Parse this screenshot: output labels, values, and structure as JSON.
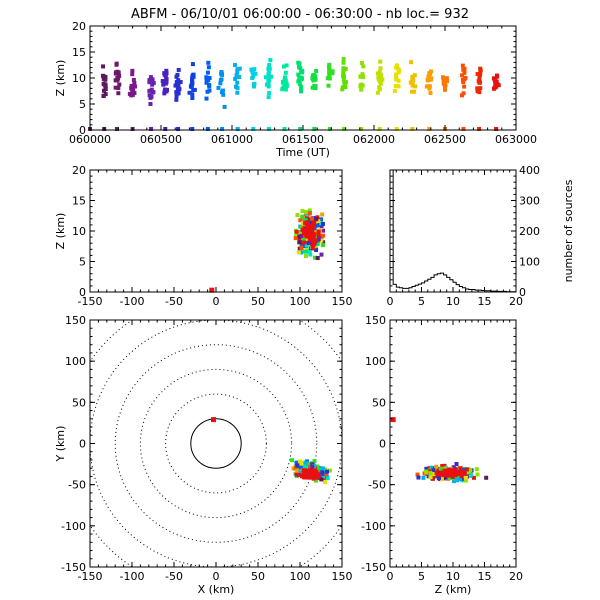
{
  "title": {
    "station": "ABFM",
    "date": "06/10/01",
    "time_range": "06:00:00 - 06:30:00",
    "count_label": "nb loc.=",
    "count": "932"
  },
  "chart_data": [
    {
      "id": "time-height",
      "type": "scatter",
      "xlabel": "Time (UT)",
      "ylabel": "Z (km)",
      "xticks": [
        "060000",
        "060500",
        "061000",
        "061500",
        "062000",
        "062500",
        "063000"
      ],
      "xlim": [
        0,
        30
      ],
      "ylim": [
        0,
        20
      ],
      "yticks": [
        0,
        5,
        10,
        15,
        20
      ],
      "colormap": "rainbow by time",
      "clusters": [
        {
          "x": 1.0,
          "z": 9.0,
          "color": "#5a1a5a"
        },
        {
          "x": 1.9,
          "z": 10.2,
          "color": "#6a1a6a"
        },
        {
          "x": 3.0,
          "z": 8.5,
          "color": "#7a1a8a"
        },
        {
          "x": 4.3,
          "z": 8.0,
          "color": "#6a20b0"
        },
        {
          "x": 5.3,
          "z": 8.6,
          "color": "#4a20c0"
        },
        {
          "x": 6.2,
          "z": 9.0,
          "color": "#2a30d0"
        },
        {
          "x": 7.2,
          "z": 9.2,
          "color": "#1040e0"
        },
        {
          "x": 8.3,
          "z": 9.6,
          "color": "#0060f0"
        },
        {
          "x": 9.3,
          "z": 9.0,
          "color": "#0090f0"
        },
        {
          "x": 10.4,
          "z": 9.8,
          "color": "#00b0e8"
        },
        {
          "x": 11.5,
          "z": 10.0,
          "color": "#00d0e0"
        },
        {
          "x": 12.6,
          "z": 10.2,
          "color": "#00e0c8"
        },
        {
          "x": 13.7,
          "z": 9.6,
          "color": "#00e8a0"
        },
        {
          "x": 14.8,
          "z": 10.4,
          "color": "#00e070"
        },
        {
          "x": 15.8,
          "z": 10.0,
          "color": "#10e040"
        },
        {
          "x": 16.9,
          "z": 10.0,
          "color": "#30e020"
        },
        {
          "x": 17.9,
          "z": 10.2,
          "color": "#60e000"
        },
        {
          "x": 19.1,
          "z": 9.8,
          "color": "#90e000"
        },
        {
          "x": 20.4,
          "z": 9.4,
          "color": "#c0e000"
        },
        {
          "x": 21.6,
          "z": 9.6,
          "color": "#e8e000"
        },
        {
          "x": 22.7,
          "z": 9.2,
          "color": "#f0c000"
        },
        {
          "x": 23.9,
          "z": 9.4,
          "color": "#f8a000"
        },
        {
          "x": 25.0,
          "z": 9.0,
          "color": "#f87800"
        },
        {
          "x": 26.3,
          "z": 9.6,
          "color": "#f85000"
        },
        {
          "x": 27.4,
          "z": 10.0,
          "color": "#f02800"
        },
        {
          "x": 28.6,
          "z": 9.2,
          "color": "#e81010"
        }
      ]
    },
    {
      "id": "x-z",
      "type": "scatter",
      "xlabel": "",
      "ylabel": "Z (km)",
      "xlim": [
        -150,
        150
      ],
      "ylim": [
        0,
        20
      ],
      "xticks": [
        -150,
        -100,
        -50,
        0,
        50,
        100,
        150
      ],
      "yticks": [
        0,
        5,
        10,
        15,
        20
      ],
      "marker_station": {
        "x": -5,
        "z": 0,
        "color": "#e81010"
      },
      "cluster": {
        "x_center": 112,
        "x_spread": 14,
        "z_center": 9.8,
        "z_spread": 2.6
      }
    },
    {
      "id": "histogram",
      "type": "bar",
      "xlabel": "",
      "ylabel": "number of sources",
      "xlim": [
        0,
        20
      ],
      "ylim": [
        0,
        400
      ],
      "xticks": [
        0,
        5,
        10,
        15,
        20
      ],
      "yticks": [
        0,
        100,
        200,
        300,
        400
      ],
      "bin_width": 0.5,
      "counts": [
        400,
        25,
        16,
        14,
        12,
        12,
        14,
        18,
        22,
        26,
        30,
        36,
        42,
        48,
        56,
        60,
        62,
        56,
        48,
        40,
        32,
        24,
        18,
        14,
        10,
        8,
        8,
        6,
        6,
        5,
        4,
        4,
        3,
        3,
        2,
        2,
        2,
        1,
        1,
        1
      ]
    },
    {
      "id": "x-y",
      "type": "scatter",
      "xlabel": "X (km)",
      "ylabel": "Y (km)",
      "xlim": [
        -150,
        150
      ],
      "ylim": [
        -150,
        150
      ],
      "xticks": [
        -150,
        -100,
        -50,
        0,
        50,
        100,
        150
      ],
      "yticks": [
        -150,
        -100,
        -50,
        0,
        50,
        100,
        150
      ],
      "range_rings_km": [
        30,
        60,
        90,
        120,
        150,
        180
      ],
      "station": {
        "x": -3,
        "y": 29,
        "color": "#e81010"
      },
      "cluster": {
        "x_center": 112,
        "x_spread": 18,
        "y_center": -33,
        "y_spread": 9
      }
    },
    {
      "id": "z-y",
      "type": "scatter",
      "xlabel": "Z (km)",
      "ylabel": "",
      "xlim": [
        0,
        20
      ],
      "ylim": [
        -150,
        150
      ],
      "xticks": [
        0,
        5,
        10,
        15,
        20
      ],
      "yticks": [
        -150,
        -100,
        -50,
        0,
        50,
        100,
        150
      ],
      "station": {
        "z": 0.5,
        "y": 29,
        "color": "#e81010"
      },
      "cluster": {
        "z_center": 9.5,
        "z_spread": 3,
        "y_center": -36,
        "y_spread": 8
      }
    }
  ],
  "colors": {
    "axis": "#000000",
    "background": "#ffffff",
    "palette": [
      "#5a1a5a",
      "#6a20b0",
      "#2a30d0",
      "#0060f0",
      "#00b0e8",
      "#00e0c8",
      "#00e070",
      "#30e020",
      "#90e000",
      "#e8e000",
      "#f8a000",
      "#f85000",
      "#e81010"
    ]
  }
}
